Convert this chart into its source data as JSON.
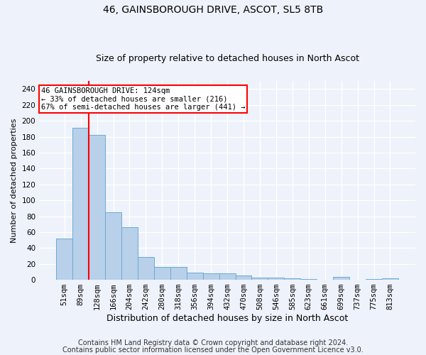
{
  "title1": "46, GAINSBOROUGH DRIVE, ASCOT, SL5 8TB",
  "title2": "Size of property relative to detached houses in North Ascot",
  "xlabel": "Distribution of detached houses by size in North Ascot",
  "ylabel": "Number of detached properties",
  "footer1": "Contains HM Land Registry data © Crown copyright and database right 2024.",
  "footer2": "Contains public sector information licensed under the Open Government Licence v3.0.",
  "categories": [
    "51sqm",
    "89sqm",
    "128sqm",
    "166sqm",
    "204sqm",
    "242sqm",
    "280sqm",
    "318sqm",
    "356sqm",
    "394sqm",
    "432sqm",
    "470sqm",
    "508sqm",
    "546sqm",
    "585sqm",
    "623sqm",
    "661sqm",
    "699sqm",
    "737sqm",
    "775sqm",
    "813sqm"
  ],
  "values": [
    52,
    191,
    182,
    85,
    66,
    29,
    16,
    16,
    9,
    8,
    8,
    5,
    3,
    3,
    2,
    1,
    0,
    4,
    0,
    1,
    2
  ],
  "bar_color": "#b8d0ea",
  "bar_edge_color": "#6aaad4",
  "marker_label": "46 GAINSBOROUGH DRIVE: 124sqm",
  "annotation_line1": "← 33% of detached houses are smaller (216)",
  "annotation_line2": "67% of semi-detached houses are larger (441) →",
  "annotation_box_color": "white",
  "annotation_box_edge": "red",
  "vline_color": "red",
  "vline_x": 1.5,
  "ylim": [
    0,
    250
  ],
  "yticks": [
    0,
    20,
    40,
    60,
    80,
    100,
    120,
    140,
    160,
    180,
    200,
    220,
    240
  ],
  "bg_color": "#eef2fa",
  "grid_color": "white",
  "title1_fontsize": 10,
  "title2_fontsize": 9,
  "ylabel_fontsize": 8,
  "xlabel_fontsize": 9,
  "tick_fontsize": 7.5,
  "footer_fontsize": 7
}
